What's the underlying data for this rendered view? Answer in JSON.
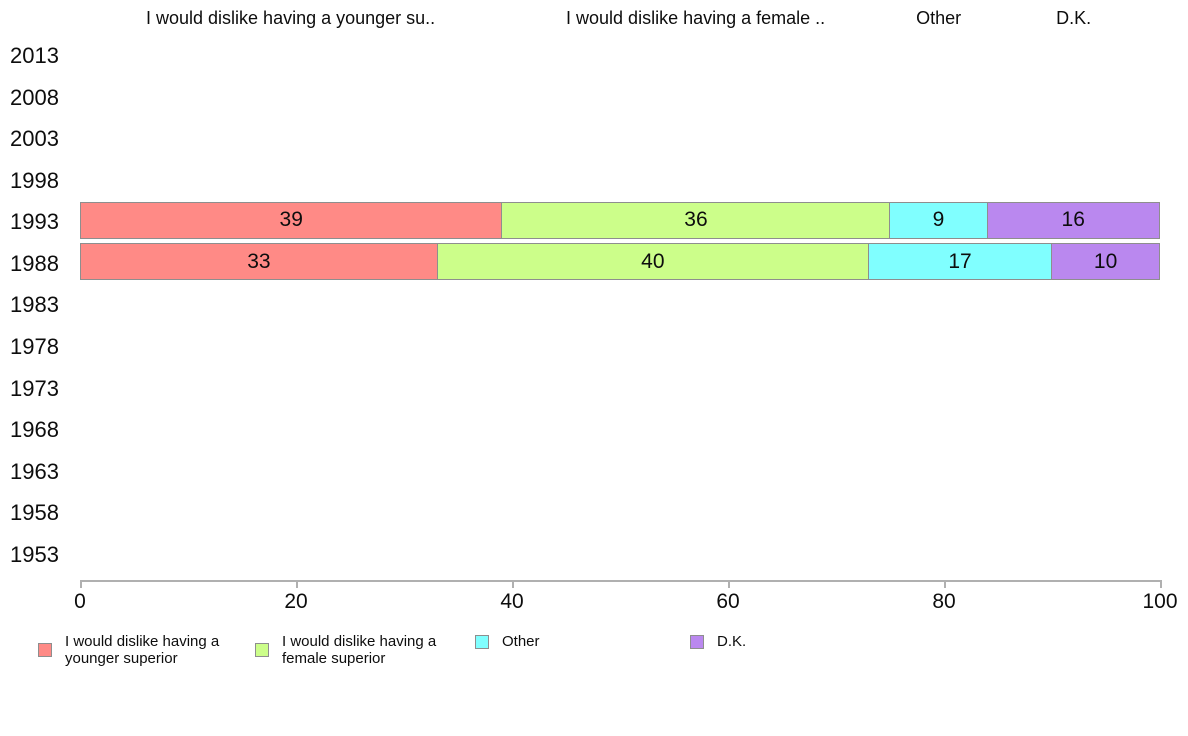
{
  "chart_data": {
    "type": "bar",
    "orientation": "horizontal",
    "stacked": true,
    "title": "",
    "xlabel": "",
    "ylabel": "",
    "xlim": [
      0,
      100
    ],
    "x_ticks": [
      0,
      20,
      40,
      60,
      80,
      100
    ],
    "grid": false,
    "legend_position": "bottom",
    "value_labels": true,
    "categories": [
      "2013",
      "2008",
      "2003",
      "1998",
      "1993",
      "1988",
      "1983",
      "1978",
      "1973",
      "1968",
      "1963",
      "1958",
      "1953"
    ],
    "series": [
      {
        "name": "I would dislike having a younger superior",
        "column_header": "I would dislike having a younger su..",
        "color": "#ff8a86",
        "values": {
          "1993": 39,
          "1988": 33
        }
      },
      {
        "name": "I would dislike having a female superior",
        "column_header": "I would dislike having a female ..",
        "color": "#ccfe8a",
        "values": {
          "1993": 36,
          "1988": 40
        }
      },
      {
        "name": "Other",
        "column_header": "Other",
        "color": "#80ffff",
        "values": {
          "1993": 9,
          "1988": 17
        }
      },
      {
        "name": "D.K.",
        "column_header": "D.K.",
        "color": "#ba88ef",
        "values": {
          "1993": 16,
          "1988": 10
        }
      }
    ]
  }
}
